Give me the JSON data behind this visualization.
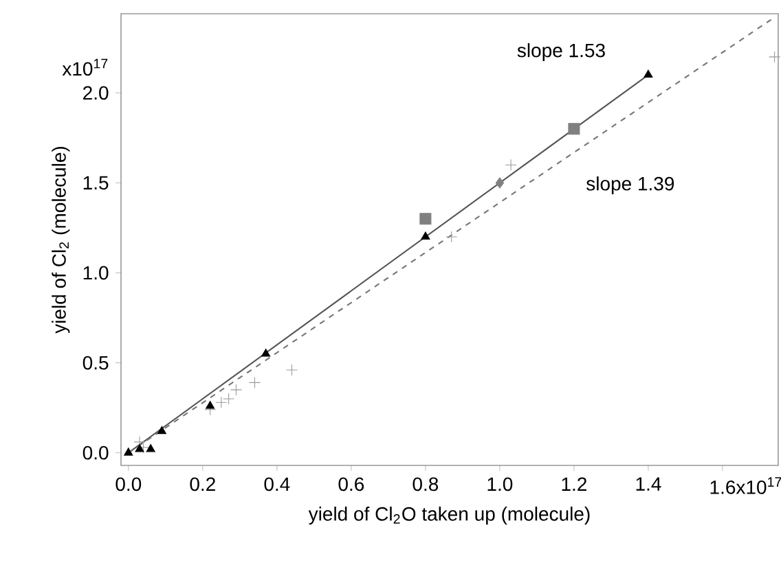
{
  "chart_data": {
    "type": "scatter",
    "xlabel": "yield of Cl$_{2}$O taken up (molecule)",
    "ylabel": "yield of Cl$_{2}$ (molecule)",
    "xlim": [
      -0.02,
      1.75
    ],
    "ylim": [
      -0.07,
      2.44
    ],
    "xticks": [
      {
        "value": 0,
        "label": "0.0"
      },
      0.2,
      0.4,
      0.6,
      0.8,
      {
        "value": 1.0,
        "label": "1.0"
      },
      1.2,
      1.4,
      {
        "value": 1.6,
        "label": "1.6"
      }
    ],
    "yticks": [
      {
        "value": 0,
        "label": "0.0"
      },
      0.5,
      {
        "value": 1.0,
        "label": "1.0"
      },
      1.5,
      {
        "value": 2.0,
        "label": "2.0"
      }
    ],
    "series": [
      {
        "type": "line",
        "line_style": "solid",
        "marker": "none",
        "color": "#555555",
        "x": [
          0,
          1.4
        ],
        "values": [
          0,
          2.1
        ]
      },
      {
        "type": "line",
        "line_style": "dashed",
        "marker": "none",
        "color": "#777777",
        "x": [
          0,
          1.74
        ],
        "values": [
          0,
          2.42
        ]
      },
      {
        "marker": "cross",
        "color": "#999999",
        "x": [
          0.03,
          0.04,
          0.22,
          0.25,
          0.27,
          0.29,
          0.34,
          0.44,
          0.87,
          1.03,
          1.74
        ],
        "values": [
          0.06,
          0.03,
          0.24,
          0.28,
          0.3,
          0.35,
          0.39,
          0.46,
          1.2,
          1.6,
          2.2
        ]
      },
      {
        "marker": "triangle",
        "color": "#000000",
        "x": [
          0,
          0.03,
          0.06,
          0.09,
          0.22,
          0.37,
          0.8,
          1.4
        ],
        "values": [
          0,
          0.02,
          0.02,
          0.12,
          0.26,
          0.55,
          1.2,
          2.1
        ]
      },
      {
        "marker": "square",
        "color": "#808080",
        "x": [
          0.8,
          1.2
        ],
        "values": [
          1.3,
          1.8
        ]
      },
      {
        "marker": "diamond",
        "color": "#808080",
        "x": [
          1.0
        ],
        "values": [
          1.5
        ]
      }
    ],
    "annotations": [
      "slope 1.53",
      "slope 1.39",
      "x10$^{17}$",
      "x10$^{17}$"
    ]
  }
}
